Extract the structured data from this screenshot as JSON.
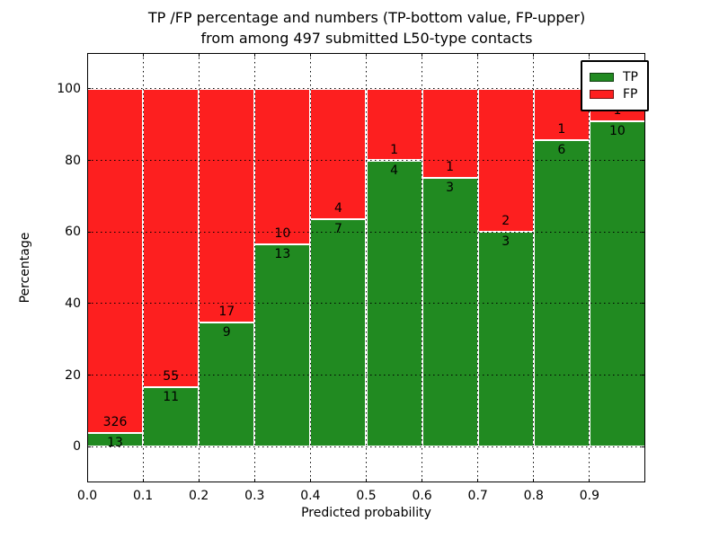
{
  "title": {
    "line1": "TP /FP percentage and numbers (TP-bottom value, FP-upper)",
    "line2": "from among 497 submitted L50-type contacts"
  },
  "axes": {
    "xlabel": "Predicted probability",
    "ylabel": "Percentage",
    "x_tick_labels": [
      "0.0",
      "0.1",
      "0.2",
      "0.3",
      "0.4",
      "0.5",
      "0.6",
      "0.7",
      "0.8",
      "0.9"
    ],
    "y_tick_labels": [
      "0",
      "20",
      "40",
      "60",
      "80",
      "100"
    ]
  },
  "colors": {
    "tp": "#218a21",
    "fp": "#fd1f1f",
    "grid": "#000000",
    "background": "#ffffff"
  },
  "legend": {
    "position": "upper right",
    "items": [
      {
        "label": "TP",
        "color_key": "tp"
      },
      {
        "label": "FP",
        "color_key": "fp"
      }
    ]
  },
  "chart_data": {
    "type": "bar",
    "stacked": true,
    "normalized_to_percent": true,
    "title": "TP /FP percentage and numbers (TP-bottom value, FP-upper) from among 497 submitted L50-type contacts",
    "xlabel": "Predicted probability",
    "ylabel": "Percentage",
    "xlim": [
      0.0,
      1.0
    ],
    "ylim": [
      -10,
      110
    ],
    "grid": true,
    "legend_position": "upper right",
    "total_contacts": 497,
    "bin_width": 0.1,
    "bin_starts": [
      0.0,
      0.1,
      0.2,
      0.3,
      0.4,
      0.5,
      0.6,
      0.7,
      0.8,
      0.9
    ],
    "categories": [
      "0.0-0.1",
      "0.1-0.2",
      "0.2-0.3",
      "0.3-0.4",
      "0.4-0.5",
      "0.5-0.6",
      "0.6-0.7",
      "0.7-0.8",
      "0.8-0.9",
      "0.9-1.0"
    ],
    "series": [
      {
        "name": "TP",
        "counts": [
          13,
          11,
          9,
          13,
          7,
          4,
          3,
          3,
          6,
          10
        ]
      },
      {
        "name": "FP",
        "counts": [
          326,
          55,
          17,
          10,
          4,
          1,
          1,
          2,
          1,
          1
        ]
      }
    ],
    "tp_percent": [
      3.83,
      16.67,
      34.62,
      56.52,
      63.64,
      80.0,
      75.0,
      60.0,
      85.71,
      90.91
    ]
  }
}
